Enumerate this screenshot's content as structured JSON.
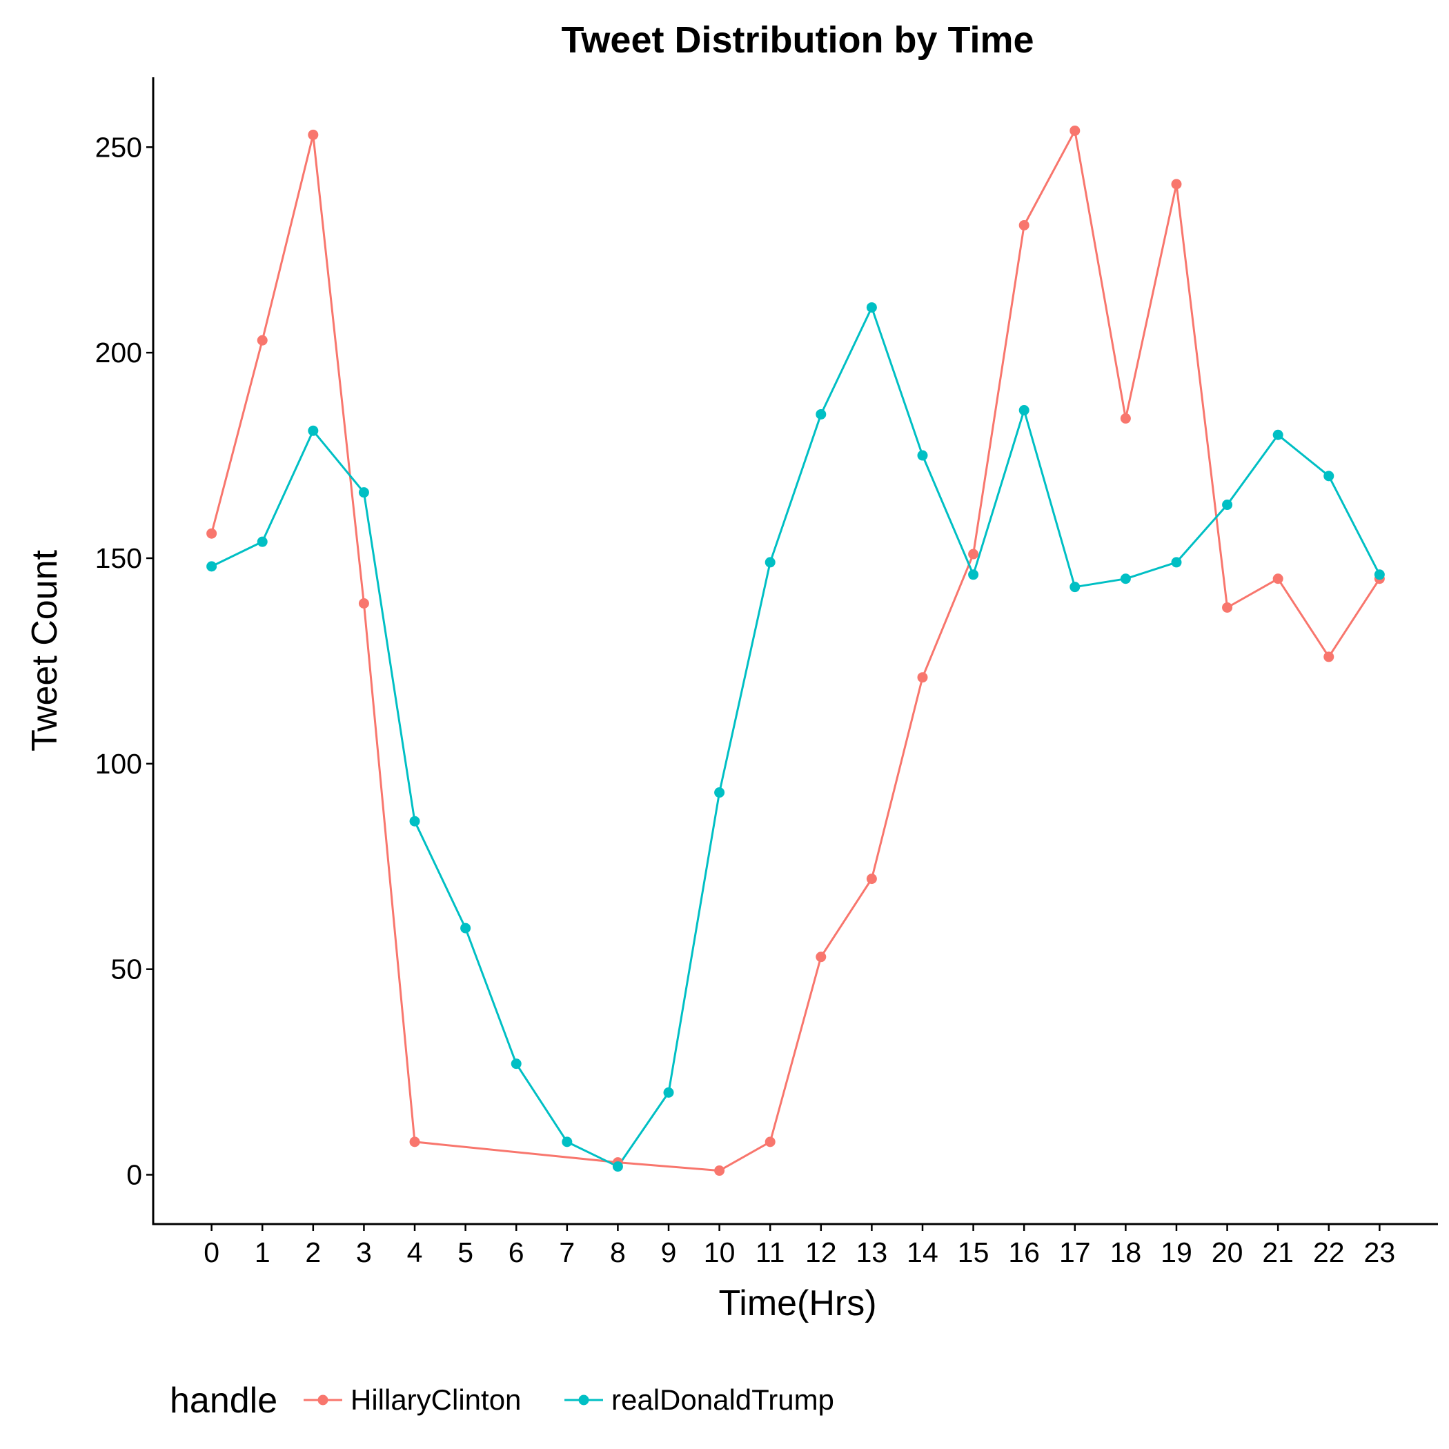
{
  "chart_data": {
    "type": "line",
    "title": "Tweet Distribution by Time",
    "xlabel": "Time(Hrs)",
    "ylabel": "Tweet Count",
    "x": [
      0,
      1,
      2,
      3,
      4,
      5,
      6,
      7,
      8,
      9,
      10,
      11,
      12,
      13,
      14,
      15,
      16,
      17,
      18,
      19,
      20,
      21,
      22,
      23
    ],
    "xticks": [
      "0",
      "1",
      "2",
      "3",
      "4",
      "5",
      "6",
      "7",
      "8",
      "9",
      "10",
      "11",
      "12",
      "13",
      "14",
      "15",
      "16",
      "17",
      "18",
      "19",
      "20",
      "21",
      "22",
      "23"
    ],
    "yticks": [
      "0",
      "50",
      "100",
      "150",
      "200",
      "250"
    ],
    "ytick_values": [
      0,
      50,
      100,
      150,
      200,
      250
    ],
    "ylim": [
      -12,
      267
    ],
    "xlim": [
      -1.15,
      24.15
    ],
    "grid": false,
    "legend": {
      "title": "handle",
      "position": "bottom-left"
    },
    "series": [
      {
        "name": "HillaryClinton",
        "color": "#F8766D",
        "x": [
          0,
          1,
          2,
          3,
          4,
          8,
          10,
          11,
          12,
          13,
          14,
          15,
          16,
          17,
          18,
          19,
          20,
          21,
          22,
          23
        ],
        "values": [
          156,
          203,
          253,
          139,
          8,
          3,
          1,
          8,
          53,
          72,
          121,
          151,
          231,
          254,
          184,
          241,
          138,
          145,
          126,
          145
        ]
      },
      {
        "name": "realDonaldTrump",
        "color": "#00BFC4",
        "x": [
          0,
          1,
          2,
          3,
          4,
          5,
          6,
          7,
          8,
          9,
          10,
          11,
          12,
          13,
          14,
          15,
          16,
          17,
          18,
          19,
          20,
          21,
          22,
          23
        ],
        "values": [
          148,
          154,
          181,
          166,
          86,
          60,
          27,
          8,
          2,
          20,
          93,
          149,
          185,
          211,
          175,
          146,
          186,
          143,
          145,
          149,
          163,
          180,
          170,
          146
        ]
      }
    ]
  }
}
